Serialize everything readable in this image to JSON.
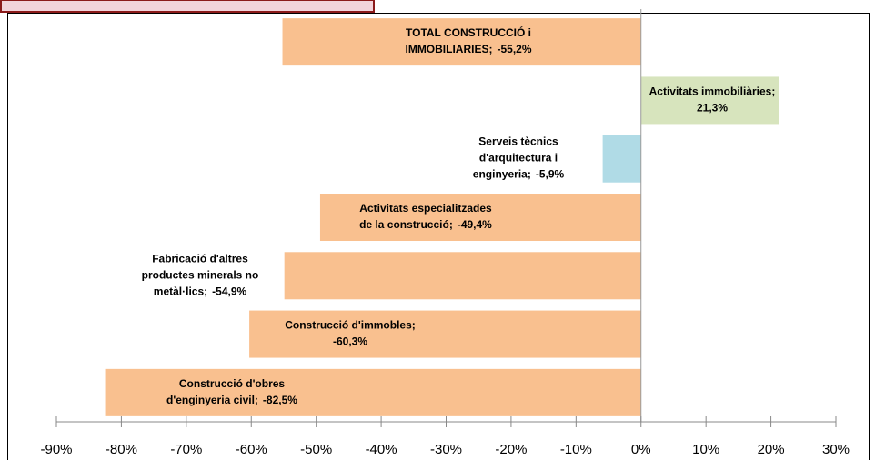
{
  "chart_data": {
    "type": "barh",
    "categories": [
      [
        "TOTAL CONSTRUCCIÓ i",
        "IMMOBILIARIES;"
      ],
      [
        "Activitats immobiliàries;"
      ],
      [
        "Serveis tècnics",
        "d'arquitectura i",
        "enginyeria;"
      ],
      [
        "Activitats especialitzades",
        "de la construcció;"
      ],
      [
        "Fabricació d'altres",
        "productes minerals no",
        "metàl·lics;"
      ],
      [
        "Construcció d'immobles;"
      ],
      [
        "Construcció d'obres",
        "d'enginyeria civil;"
      ]
    ],
    "values": [
      -55.2,
      21.3,
      -5.9,
      -49.4,
      -54.9,
      -60.3,
      -82.5
    ],
    "value_labels": [
      "-55,2%",
      "21,3%",
      "-5,9%",
      "-49,4%",
      "-54,9%",
      "-60,3%",
      "-82,5%"
    ],
    "colors": [
      "#f9c08f",
      "#d7e4bd",
      "#b0dbe6",
      "#f9c08f",
      "#f9c08f",
      "#f9c08f",
      "#f9c08f"
    ],
    "xlim": [
      -90,
      30
    ],
    "xticks": [
      {
        "value": -90,
        "label": "-90%"
      },
      {
        "value": -80,
        "label": "-80%"
      },
      {
        "value": -70,
        "label": "-70%"
      },
      {
        "value": -60,
        "label": "-60%"
      },
      {
        "value": -50,
        "label": "-50%"
      },
      {
        "value": -40,
        "label": "-40%"
      },
      {
        "value": -30,
        "label": "-30%"
      },
      {
        "value": -20,
        "label": "-20%"
      },
      {
        "value": -10,
        "label": "-10%"
      },
      {
        "value": 0,
        "label": "0%"
      },
      {
        "value": 10,
        "label": "10%"
      },
      {
        "value": 20,
        "label": "20%"
      },
      {
        "value": 30,
        "label": "30%"
      }
    ]
  }
}
